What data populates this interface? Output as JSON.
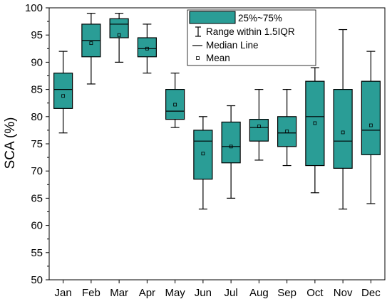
{
  "chart_data": {
    "type": "box",
    "xlabel": "",
    "ylabel": "SCA (%)",
    "ylim": [
      50,
      100
    ],
    "yticks": [
      50,
      55,
      60,
      65,
      70,
      75,
      80,
      85,
      90,
      95,
      100
    ],
    "grid": false,
    "legend_position": "top-right",
    "legend": {
      "box_label": "25%~75%",
      "range_label": "Range within 1.5IQR",
      "median_label": "Median Line",
      "mean_label": "Mean"
    },
    "colors": {
      "box_fill": "#2a9d96",
      "line": "#000000"
    },
    "categories": [
      "Jan",
      "Feb",
      "Mar",
      "Apr",
      "May",
      "Jun",
      "Jul",
      "Aug",
      "Sep",
      "Oct",
      "Nov",
      "Dec"
    ],
    "boxes": [
      {
        "min": 77,
        "q1": 81.5,
        "median": 85,
        "q3": 88,
        "max": 92,
        "mean": 83.8
      },
      {
        "min": 86,
        "q1": 91,
        "median": 94,
        "q3": 97,
        "max": 99,
        "mean": 93.5
      },
      {
        "min": 90,
        "q1": 94.5,
        "median": 97,
        "q3": 98,
        "max": 99,
        "mean": 95
      },
      {
        "min": 88,
        "q1": 91,
        "median": 92.5,
        "q3": 94.5,
        "max": 97,
        "mean": 92.5
      },
      {
        "min": 78,
        "q1": 79.5,
        "median": 81,
        "q3": 85,
        "max": 88,
        "mean": 82.2
      },
      {
        "min": 63,
        "q1": 68.5,
        "median": 75.5,
        "q3": 77.5,
        "max": 80,
        "mean": 73.2
      },
      {
        "min": 65,
        "q1": 71.5,
        "median": 74.5,
        "q3": 79,
        "max": 82,
        "mean": 74.5
      },
      {
        "min": 72,
        "q1": 75.5,
        "median": 78,
        "q3": 79.5,
        "max": 85,
        "mean": 78.2
      },
      {
        "min": 71,
        "q1": 74.5,
        "median": 77,
        "q3": 80,
        "max": 85,
        "mean": 77.3
      },
      {
        "min": 66,
        "q1": 71,
        "median": 80,
        "q3": 86.5,
        "max": 89,
        "mean": 78.8
      },
      {
        "min": 63,
        "q1": 70.5,
        "median": 75.5,
        "q3": 85,
        "max": 96,
        "mean": 77.1
      },
      {
        "min": 64,
        "q1": 73,
        "median": 77.5,
        "q3": 86.5,
        "max": 92,
        "mean": 78.4
      }
    ]
  }
}
